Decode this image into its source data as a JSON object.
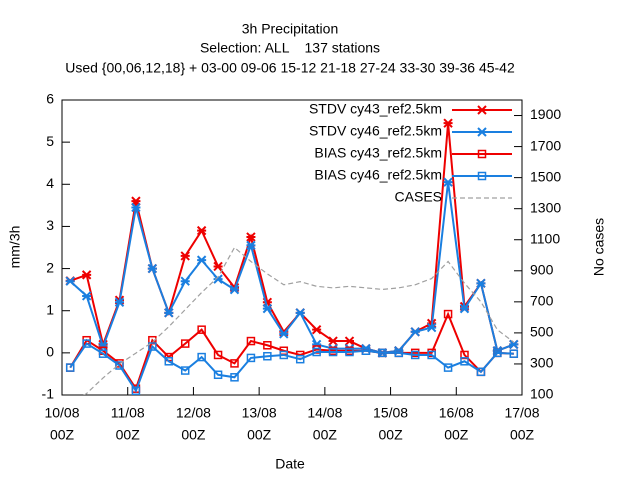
{
  "chart_data": {
    "type": "line",
    "title": "3h Precipitation",
    "subtitle": [
      "Selection: ALL    137 stations",
      "Used {00,06,12,18} + 03-00 09-06 15-12 21-18 27-24 33-30 39-36 45-42"
    ],
    "x_label": "Date",
    "y_label": "mm/3h",
    "y2_label": "No cases",
    "x": [
      "10/08 03Z",
      "10/08 09Z",
      "10/08 15Z",
      "10/08 21Z",
      "11/08 03Z",
      "11/08 09Z",
      "11/08 15Z",
      "11/08 21Z",
      "12/08 03Z",
      "12/08 09Z",
      "12/08 15Z",
      "12/08 21Z",
      "13/08 03Z",
      "13/08 09Z",
      "13/08 15Z",
      "13/08 21Z",
      "14/08 03Z",
      "14/08 09Z",
      "14/08 15Z",
      "14/08 21Z",
      "15/08 03Z",
      "15/08 09Z",
      "15/08 15Z",
      "15/08 21Z",
      "16/08 03Z",
      "16/08 09Z",
      "16/08 15Z",
      "16/08 21Z"
    ],
    "xlim": [
      "10/08 00Z",
      "17/08 00Z"
    ],
    "xticks": [
      {
        "value": "10/08 00Z",
        "label": [
          "10/08",
          "00Z"
        ]
      },
      {
        "value": "11/08 00Z",
        "label": [
          "11/08",
          "00Z"
        ]
      },
      {
        "value": "12/08 00Z",
        "label": [
          "12/08",
          "00Z"
        ]
      },
      {
        "value": "13/08 00Z",
        "label": [
          "13/08",
          "00Z"
        ]
      },
      {
        "value": "14/08 00Z",
        "label": [
          "14/08",
          "00Z"
        ]
      },
      {
        "value": "15/08 00Z",
        "label": [
          "15/08",
          "00Z"
        ]
      },
      {
        "value": "16/08 00Z",
        "label": [
          "16/08",
          "00Z"
        ]
      },
      {
        "value": "17/08 00Z",
        "label": [
          "17/08",
          "00Z"
        ]
      }
    ],
    "ylim": [
      -1,
      6
    ],
    "yticks": [
      -1,
      0,
      1,
      2,
      3,
      4,
      5,
      6
    ],
    "y2lim": [
      100,
      2000
    ],
    "y2ticks": [
      100,
      300,
      500,
      700,
      900,
      1100,
      1300,
      1500,
      1700,
      1900
    ],
    "legend": "top right",
    "series": [
      {
        "name": "STDV cy43_ref2.5km",
        "color": "#ee0000",
        "marker": "star",
        "values": [
          1.71,
          1.85,
          0.2,
          1.25,
          3.6,
          2.0,
          0.95,
          2.3,
          2.9,
          2.05,
          1.55,
          2.75,
          1.2,
          0.5,
          0.95,
          0.55,
          0.28,
          0.28,
          0.1,
          0.0,
          0.05,
          0.5,
          0.7,
          5.45,
          1.1,
          1.65,
          0.05,
          0.2
        ]
      },
      {
        "name": "STDV cy46_ref2.5km",
        "color": "#1a7fe0",
        "marker": "star",
        "values": [
          1.7,
          1.35,
          0.15,
          1.2,
          3.45,
          2.0,
          0.95,
          1.7,
          2.2,
          1.75,
          1.5,
          2.55,
          1.05,
          0.45,
          0.95,
          0.2,
          0.1,
          0.1,
          0.1,
          0.0,
          0.05,
          0.5,
          0.6,
          4.05,
          1.05,
          1.65,
          0.05,
          0.2
        ]
      },
      {
        "name": "BIAS cy43_ref2.5km",
        "color": "#ee0000",
        "marker": "square",
        "values": [
          -0.35,
          0.3,
          0.05,
          -0.25,
          -0.85,
          0.3,
          -0.1,
          0.22,
          0.55,
          -0.05,
          -0.25,
          0.28,
          0.18,
          0.05,
          -0.05,
          0.08,
          0.05,
          0.05,
          0.05,
          0.0,
          0.0,
          0.0,
          0.0,
          0.92,
          -0.05,
          -0.45,
          0.0,
          -0.02
        ]
      },
      {
        "name": "BIAS cy46_ref2.5km",
        "color": "#1a7fe0",
        "marker": "square",
        "values": [
          -0.35,
          0.22,
          -0.02,
          -0.3,
          -0.9,
          0.15,
          -0.2,
          -0.42,
          -0.1,
          -0.52,
          -0.58,
          -0.12,
          -0.08,
          -0.05,
          -0.15,
          0.02,
          0.02,
          0.02,
          0.05,
          0.0,
          0.0,
          -0.05,
          -0.05,
          -0.35,
          -0.2,
          -0.45,
          0.0,
          -0.02
        ]
      },
      {
        "name": "CASES",
        "color": "#a0a0a0",
        "dashed": true,
        "axis": "y2",
        "values": [
          40,
          110,
          210,
          300,
          370,
          440,
          540,
          650,
          760,
          860,
          1050,
          960,
          880,
          810,
          830,
          800,
          790,
          800,
          790,
          780,
          790,
          810,
          850,
          960,
          820,
          700,
          520,
          440
        ]
      }
    ]
  }
}
